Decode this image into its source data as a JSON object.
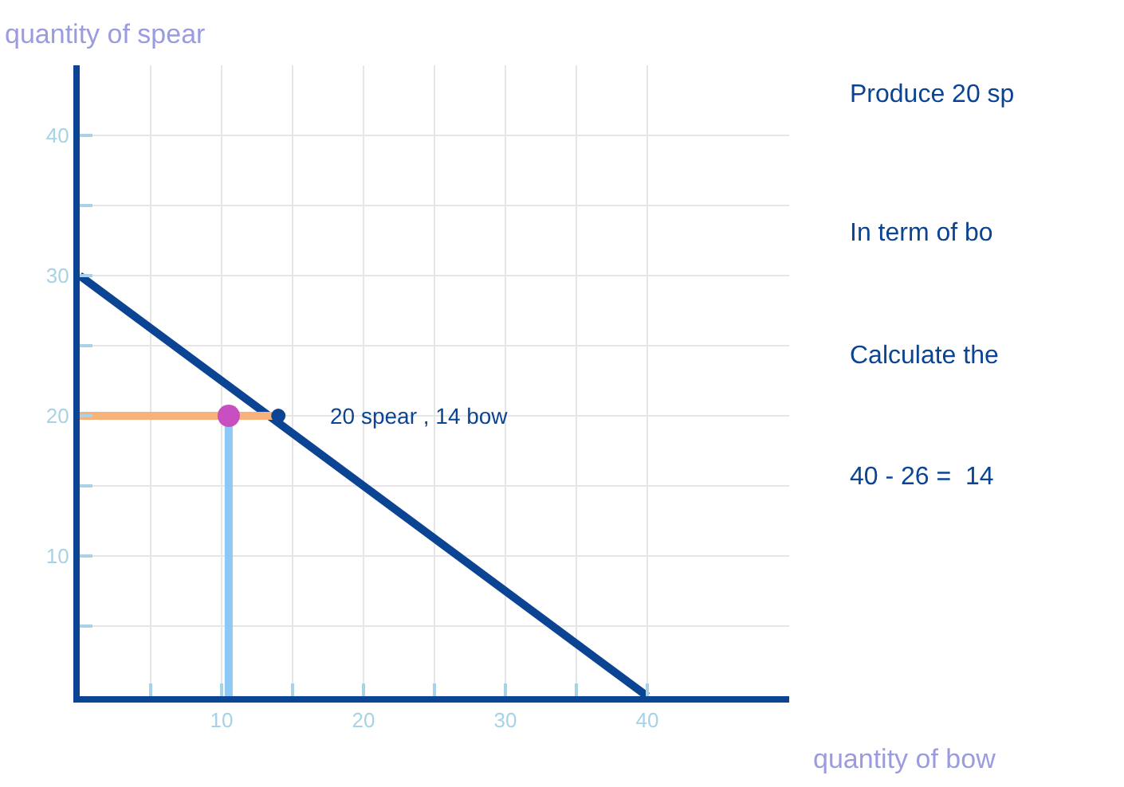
{
  "chart_data": {
    "type": "line",
    "xlabel": "quantity of bow",
    "ylabel": "quantity of spear",
    "series": [
      {
        "color": "#0b4492",
        "x": [
          0,
          40
        ],
        "values": [
          30,
          0
        ]
      },
      {
        "color": "#f7b27c",
        "x": [
          0,
          14
        ],
        "values": [
          20,
          20
        ]
      },
      {
        "color": "#8ec8f5",
        "x": [
          10.5,
          10.5
        ],
        "values": [
          0,
          20
        ]
      },
      {
        "type": "scatter",
        "color": "#c84fbf",
        "x": [
          10.5
        ],
        "values": [
          20
        ]
      },
      {
        "type": "scatter",
        "color": "#0b4492",
        "x": [
          14
        ],
        "values": [
          20
        ]
      }
    ],
    "annotations": [
      {
        "text": "20 spear , 14 bow",
        "x": 14,
        "y": 20
      },
      "Produce 20 sp",
      "In term of bo",
      "Calculate the",
      "40 - 26 =  14"
    ],
    "xlim": [
      0,
      50
    ],
    "ylim": [
      0,
      45
    ],
    "xticks": [
      {
        "value": 5,
        "label": null
      },
      10,
      {
        "value": 15,
        "label": null
      },
      20,
      {
        "value": 25,
        "label": null
      },
      30,
      {
        "value": 35,
        "label": null
      },
      40
    ],
    "yticks": [
      {
        "value": 5,
        "label": null
      },
      10,
      {
        "value": 15,
        "label": null
      },
      20,
      {
        "value": 25,
        "label": null
      },
      30,
      {
        "value": 35,
        "label": null
      },
      40
    ],
    "grid": true
  }
}
